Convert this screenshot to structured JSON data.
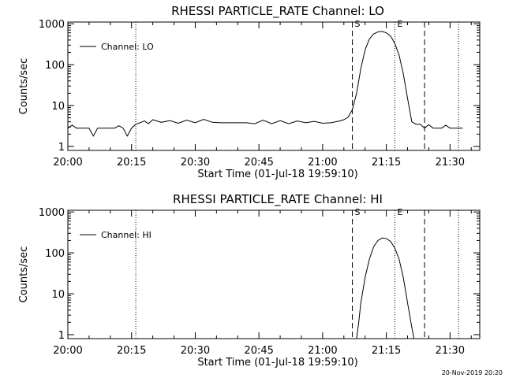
{
  "stamp": "20-Nov-2019 20:20",
  "chart_data": [
    {
      "type": "line",
      "title": "RHESSI PARTICLE_RATE Channel: LO",
      "xlabel": "Start Time (01-Jul-18 19:59:10)",
      "ylabel": "Counts/sec",
      "yscale": "log",
      "xlim": [
        "20:00",
        "21:37"
      ],
      "ylim": [
        0.8,
        1100
      ],
      "x_ticks": [
        "20:00",
        "20:15",
        "20:30",
        "20:45",
        "21:00",
        "21:15",
        "21:30"
      ],
      "y_ticks": [
        "1",
        "10",
        "100",
        "1000"
      ],
      "legend": {
        "position": "top-left",
        "label": "Channel: LO"
      },
      "markers": [
        {
          "time": "21:07",
          "label": "S",
          "style": "dashed"
        },
        {
          "time": "21:17",
          "label": "E",
          "style": "dotted"
        },
        {
          "time": "21:24",
          "label": "",
          "style": "dashed"
        }
      ],
      "dotted_lines": [
        "20:16",
        "21:17",
        "21:32"
      ],
      "series": [
        {
          "name": "Channel: LO",
          "x": [
            "20:00",
            "20:01",
            "20:02",
            "20:03",
            "20:04",
            "20:05",
            "20:06",
            "20:07",
            "20:08",
            "20:09",
            "20:10",
            "20:11",
            "20:12",
            "20:13",
            "20:14",
            "20:15",
            "20:16",
            "20:17",
            "20:18",
            "20:19",
            "20:20",
            "20:22",
            "20:24",
            "20:26",
            "20:28",
            "20:30",
            "20:32",
            "20:34",
            "20:36",
            "20:38",
            "20:40",
            "20:42",
            "20:44",
            "20:46",
            "20:48",
            "20:50",
            "20:52",
            "20:54",
            "20:56",
            "20:58",
            "21:00",
            "21:02",
            "21:04",
            "21:05",
            "21:06",
            "21:07",
            "21:08",
            "21:09",
            "21:10",
            "21:11",
            "21:12",
            "21:13",
            "21:14",
            "21:15",
            "21:16",
            "21:17",
            "21:18",
            "21:19",
            "21:20",
            "21:21",
            "21:22",
            "21:23",
            "21:24",
            "21:25",
            "21:26",
            "21:28",
            "21:29",
            "21:30",
            "21:32",
            "21:33"
          ],
          "y": [
            2.8,
            3.3,
            2.8,
            2.8,
            2.8,
            2.8,
            1.8,
            2.8,
            2.8,
            2.8,
            2.8,
            2.8,
            3.2,
            2.8,
            1.8,
            2.8,
            3.5,
            3.8,
            4.2,
            3.6,
            4.5,
            3.9,
            4.3,
            3.7,
            4.4,
            3.8,
            4.6,
            3.9,
            3.8,
            3.8,
            3.8,
            3.8,
            3.6,
            4.4,
            3.6,
            4.3,
            3.6,
            4.2,
            3.8,
            4.1,
            3.7,
            3.8,
            4.2,
            4.5,
            5.2,
            8,
            20,
            80,
            230,
            420,
            560,
            630,
            650,
            600,
            500,
            330,
            170,
            60,
            15,
            4,
            3.5,
            3.5,
            2.8,
            3.4,
            2.8,
            2.8,
            3.3,
            2.8,
            2.8,
            2.8
          ]
        }
      ]
    },
    {
      "type": "line",
      "title": "RHESSI PARTICLE_RATE Channel: HI",
      "xlabel": "Start Time (01-Jul-18 19:59:10)",
      "ylabel": "Counts/sec",
      "yscale": "log",
      "xlim": [
        "20:00",
        "21:37"
      ],
      "ylim": [
        0.8,
        1100
      ],
      "x_ticks": [
        "20:00",
        "20:15",
        "20:30",
        "20:45",
        "21:00",
        "21:15",
        "21:30"
      ],
      "y_ticks": [
        "1",
        "10",
        "100",
        "1000"
      ],
      "legend": {
        "position": "top-left",
        "label": "Channel: HI"
      },
      "markers": [
        {
          "time": "21:07",
          "label": "S",
          "style": "dashed"
        },
        {
          "time": "21:17",
          "label": "E",
          "style": "dotted"
        },
        {
          "time": "21:24",
          "label": "",
          "style": "dashed"
        }
      ],
      "dotted_lines": [
        "20:16",
        "21:17",
        "21:32"
      ],
      "series": [
        {
          "name": "Channel: HI",
          "x": [
            "21:08",
            "21:08.5",
            "21:09",
            "21:10",
            "21:11",
            "21:12",
            "21:13",
            "21:14",
            "21:15",
            "21:16",
            "21:17",
            "21:18",
            "21:19",
            "21:20",
            "21:21",
            "21:21.5"
          ],
          "y": [
            0.8,
            2,
            6,
            25,
            70,
            140,
            200,
            230,
            225,
            190,
            130,
            70,
            25,
            6,
            1.5,
            0.8
          ]
        }
      ]
    }
  ]
}
